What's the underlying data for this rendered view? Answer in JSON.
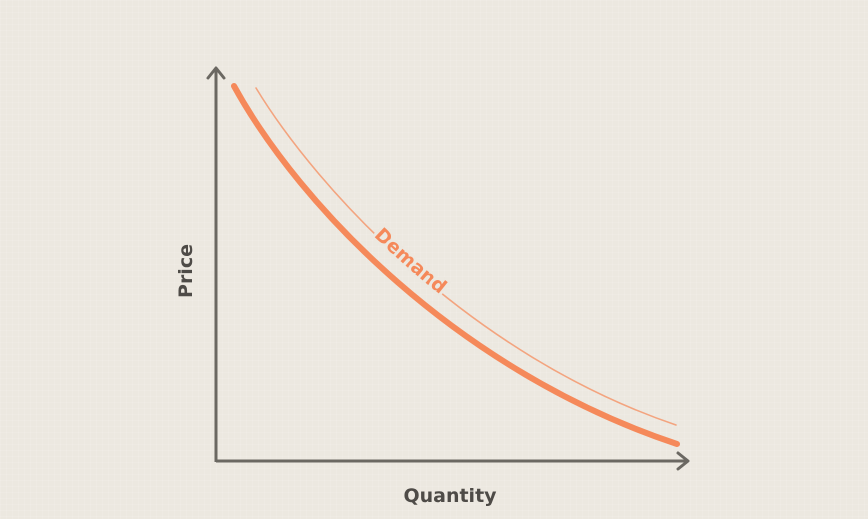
{
  "chart_data": {
    "type": "line",
    "xlabel": "Quantity",
    "ylabel": "Price",
    "series": [
      {
        "name": "Demand"
      }
    ],
    "colors": {
      "axis": "#6b6862",
      "curve": "#f5895a",
      "curve_outline": "#f3a47f",
      "text": "#4e4b47"
    }
  }
}
